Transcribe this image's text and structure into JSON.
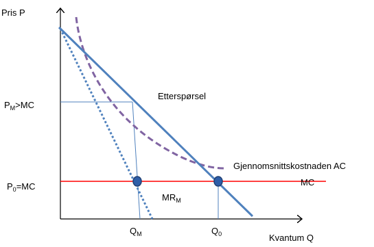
{
  "axes": {
    "y_label": "Pris P",
    "x_label": "Kvantum Q"
  },
  "labels": {
    "pm": {
      "main": "P",
      "sub": "M",
      "rest": ">MC"
    },
    "p0": {
      "main": "P",
      "sub": "0",
      "rest": "=MC"
    },
    "qm": {
      "main": "Q",
      "sub": "M"
    },
    "q0": {
      "main": "Q",
      "sub": "0"
    },
    "demand": "Etterspørsel",
    "ac": "Gjennomsnittskostnaden AC",
    "mc": "MC",
    "mr": {
      "main": "MR",
      "sub": "M"
    }
  },
  "colors": {
    "demand": "#4f81bd",
    "mr": "#4f81bd",
    "ac": "#8064a2",
    "mc": "#ff0000",
    "guide": "#4f81bd",
    "point": "#2e5ea8",
    "axis": "#000000"
  }
}
